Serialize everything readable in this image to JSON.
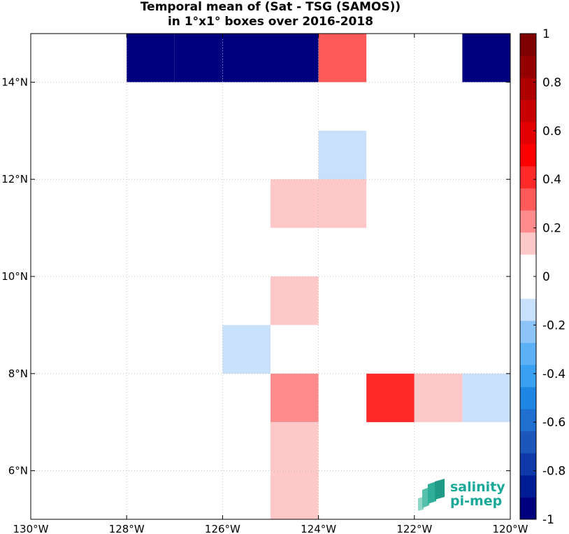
{
  "chart_data": {
    "type": "heatmap",
    "title_lines": [
      "Temporal mean of (Sat - TSG (SAMOS))",
      "in 1°x1° boxes over 2016-2018"
    ],
    "x_ticks": [
      {
        "value": -130,
        "label": "130°W"
      },
      {
        "value": -128,
        "label": "128°W"
      },
      {
        "value": -126,
        "label": "126°W"
      },
      {
        "value": -124,
        "label": "124°W"
      },
      {
        "value": -122,
        "label": "122°W"
      },
      {
        "value": -120,
        "label": "120°W"
      }
    ],
    "y_ticks": [
      {
        "value": 6,
        "label": "6°N"
      },
      {
        "value": 8,
        "label": "8°N"
      },
      {
        "value": 10,
        "label": "10°N"
      },
      {
        "value": 12,
        "label": "12°N"
      },
      {
        "value": 14,
        "label": "14°N"
      }
    ],
    "xlim": [
      -130,
      -120
    ],
    "ylim": [
      5,
      15
    ],
    "grid": true,
    "cells": [
      {
        "lon": -128,
        "lat": 14,
        "value": -1.0
      },
      {
        "lon": -127,
        "lat": 14,
        "value": -1.0
      },
      {
        "lon": -126,
        "lat": 14,
        "value": -1.0
      },
      {
        "lon": -125,
        "lat": 14,
        "value": -1.0
      },
      {
        "lon": -124,
        "lat": 14,
        "value": 0.35
      },
      {
        "lon": -121,
        "lat": 14,
        "value": -1.0
      },
      {
        "lon": -124,
        "lat": 12,
        "value": -0.1
      },
      {
        "lon": -125,
        "lat": 11,
        "value": 0.1
      },
      {
        "lon": -124,
        "lat": 11,
        "value": 0.1
      },
      {
        "lon": -125,
        "lat": 9,
        "value": 0.1
      },
      {
        "lon": -126,
        "lat": 8,
        "value": -0.1
      },
      {
        "lon": -125,
        "lat": 7,
        "value": 0.25
      },
      {
        "lon": -123,
        "lat": 7,
        "value": 0.45
      },
      {
        "lon": -122,
        "lat": 7,
        "value": 0.1
      },
      {
        "lon": -121,
        "lat": 7,
        "value": -0.1
      },
      {
        "lon": -125,
        "lat": 6,
        "value": 0.1
      },
      {
        "lon": -125,
        "lat": 5,
        "value": 0.1
      }
    ],
    "colorbar": {
      "range": [
        -1,
        1
      ],
      "colors": [
        "#00007f",
        "#001c94",
        "#0f39a8",
        "#1c56bb",
        "#1f6fd0",
        "#1f86e3",
        "#3aa0f0",
        "#5cb0f5",
        "#8cc4f7",
        "#c8e0fa",
        "#ffffff",
        "#ffffff",
        "#fec8c8",
        "#fe8c8c",
        "#fe5a5a",
        "#fe2a2a",
        "#fe0000",
        "#e30000",
        "#c80000",
        "#ae0000",
        "#940000",
        "#7f0000"
      ],
      "ticks": [
        {
          "value": 1,
          "label": "1"
        },
        {
          "value": 0.8,
          "label": "0.8"
        },
        {
          "value": 0.6,
          "label": "0.6"
        },
        {
          "value": 0.4,
          "label": "0.4"
        },
        {
          "value": 0.2,
          "label": "0.2"
        },
        {
          "value": 0,
          "label": "0"
        },
        {
          "value": -0.2,
          "label": "-0.2"
        },
        {
          "value": -0.4,
          "label": "-0.4"
        },
        {
          "value": -0.6,
          "label": "-0.6"
        },
        {
          "value": -0.8,
          "label": "-0.8"
        },
        {
          "value": -1,
          "label": "-1"
        }
      ]
    }
  },
  "logo": {
    "line1": "salinity",
    "line2": "pi-mep",
    "color": "#1aa898"
  }
}
